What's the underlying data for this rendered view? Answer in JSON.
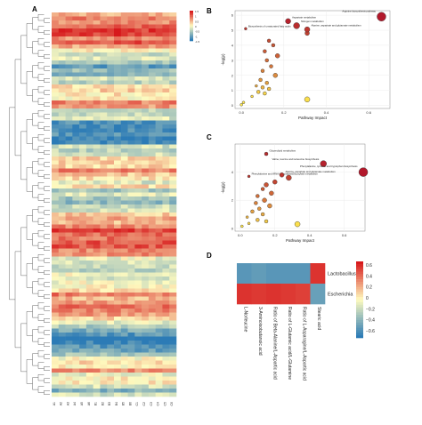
{
  "panels": {
    "a": "A",
    "b": "B",
    "c": "C",
    "d": "D"
  },
  "colors": {
    "high": "#d7191c",
    "mid": "#fffbbf",
    "low": "#2c7bb6",
    "point_high": "#b2182b",
    "point_low": "#ffe94d"
  },
  "heatmap_a": {
    "legend_ticks": [
      "1.5",
      "1",
      "0.5",
      "0",
      "-0.5",
      "-1",
      "-1.5"
    ],
    "column_labels": [
      "A1",
      "A2",
      "A3",
      "A4",
      "A5",
      "A6",
      "B1",
      "B2",
      "B3",
      "B4",
      "B5",
      "B6",
      "C1",
      "C2",
      "C3",
      "C4",
      "C5",
      "C6"
    ]
  },
  "chart_data": [
    {
      "type": "scatter",
      "panel": "B",
      "xlabel": "Pathway Impact",
      "ylabel": "-log(p)",
      "xlim": [
        -0.03,
        0.7
      ],
      "ylim": [
        -0.2,
        6.3
      ],
      "xticks": [
        0.0,
        0.2,
        0.4,
        0.6
      ],
      "yticks": [
        0,
        1,
        2,
        3,
        4,
        5,
        6
      ],
      "points": [
        {
          "x": 0.66,
          "y": 5.9,
          "size": 5,
          "v": 1.0,
          "label": "Arginine biosynthesis pathway"
        },
        {
          "x": 0.22,
          "y": 5.6,
          "size": 3,
          "v": 0.95,
          "label": "Aspartate metabolism"
        },
        {
          "x": 0.26,
          "y": 5.3,
          "size": 3.5,
          "v": 0.9,
          "label": "Nitrogen metabolism"
        },
        {
          "x": 0.31,
          "y": 5.05,
          "size": 3,
          "v": 0.85,
          "label": "Alanine, aspartate and glutamate metabolism"
        },
        {
          "x": 0.02,
          "y": 5.1,
          "size": 1.5,
          "v": 0.85,
          "label": "Biosynthesis of unsaturated fatty acids"
        },
        {
          "x": 0.31,
          "y": 4.8,
          "size": 2.5,
          "v": 0.8,
          "label": ""
        },
        {
          "x": 0.13,
          "y": 4.3,
          "size": 2,
          "v": 0.75,
          "label": ""
        },
        {
          "x": 0.15,
          "y": 4.0,
          "size": 2,
          "v": 0.7,
          "label": ""
        },
        {
          "x": 0.11,
          "y": 3.6,
          "size": 2,
          "v": 0.68,
          "label": ""
        },
        {
          "x": 0.17,
          "y": 3.3,
          "size": 2.5,
          "v": 0.65,
          "label": ""
        },
        {
          "x": 0.12,
          "y": 3.0,
          "size": 2,
          "v": 0.6,
          "label": ""
        },
        {
          "x": 0.14,
          "y": 2.6,
          "size": 2,
          "v": 0.55,
          "label": ""
        },
        {
          "x": 0.1,
          "y": 2.3,
          "size": 2,
          "v": 0.5,
          "label": ""
        },
        {
          "x": 0.16,
          "y": 2.0,
          "size": 2.5,
          "v": 0.45,
          "label": ""
        },
        {
          "x": 0.09,
          "y": 1.7,
          "size": 2,
          "v": 0.4,
          "label": ""
        },
        {
          "x": 0.12,
          "y": 1.5,
          "size": 2,
          "v": 0.35,
          "label": ""
        },
        {
          "x": 0.07,
          "y": 1.3,
          "size": 1.5,
          "v": 0.3,
          "label": ""
        },
        {
          "x": 0.1,
          "y": 1.2,
          "size": 2,
          "v": 0.25,
          "label": ""
        },
        {
          "x": 0.13,
          "y": 1.1,
          "size": 2,
          "v": 0.2,
          "label": ""
        },
        {
          "x": 0.08,
          "y": 0.9,
          "size": 2,
          "v": 0.15,
          "label": ""
        },
        {
          "x": 0.11,
          "y": 0.8,
          "size": 2,
          "v": 0.1,
          "label": ""
        },
        {
          "x": 0.05,
          "y": 0.6,
          "size": 1.5,
          "v": 0.08,
          "label": ""
        },
        {
          "x": 0.31,
          "y": 0.4,
          "size": 3,
          "v": 0.05,
          "label": ""
        },
        {
          "x": 0.01,
          "y": 0.2,
          "size": 1.5,
          "v": 0.03,
          "label": ""
        },
        {
          "x": 0.0,
          "y": 0.05,
          "size": 1.5,
          "v": 0.0,
          "label": ""
        }
      ]
    },
    {
      "type": "scatter",
      "panel": "C",
      "xlabel": "Pathway Impact",
      "ylabel": "-log(p)",
      "xlim": [
        -0.03,
        0.72
      ],
      "ylim": [
        -0.2,
        6.0
      ],
      "xticks": [
        0.0,
        0.2,
        0.4,
        0.6
      ],
      "yticks": [
        0,
        2,
        4
      ],
      "points": [
        {
          "x": 0.15,
          "y": 5.3,
          "size": 2,
          "v": 0.9,
          "label": "Glycerolipid metabolism"
        },
        {
          "x": 0.48,
          "y": 4.6,
          "size": 3.5,
          "v": 0.95,
          "label": "Valine, leucine and isoleucine biosynthesis"
        },
        {
          "x": 0.71,
          "y": 4.0,
          "size": 5,
          "v": 1.0,
          "label": "Phenylalanine, tyrosine and tryptophan biosynthesis"
        },
        {
          "x": 0.05,
          "y": 3.7,
          "size": 1.5,
          "v": 0.85,
          "label": "Phenylalanine and tRNA biosynthesis"
        },
        {
          "x": 0.24,
          "y": 3.8,
          "size": 2.5,
          "v": 0.85,
          "label": "Alanine, aspartate and glutamate metabolism"
        },
        {
          "x": 0.28,
          "y": 3.6,
          "size": 3,
          "v": 0.8,
          "label": "Glyoxylate metabolism"
        },
        {
          "x": 0.2,
          "y": 3.3,
          "size": 2.5,
          "v": 0.78,
          "label": ""
        },
        {
          "x": 0.15,
          "y": 3.1,
          "size": 2.5,
          "v": 0.72,
          "label": ""
        },
        {
          "x": 0.13,
          "y": 2.8,
          "size": 2,
          "v": 0.68,
          "label": ""
        },
        {
          "x": 0.18,
          "y": 2.5,
          "size": 2.5,
          "v": 0.62,
          "label": ""
        },
        {
          "x": 0.1,
          "y": 2.3,
          "size": 2,
          "v": 0.58,
          "label": ""
        },
        {
          "x": 0.14,
          "y": 2.0,
          "size": 2.5,
          "v": 0.55,
          "label": ""
        },
        {
          "x": 0.09,
          "y": 1.8,
          "size": 2,
          "v": 0.5,
          "label": ""
        },
        {
          "x": 0.17,
          "y": 1.6,
          "size": 2.5,
          "v": 0.45,
          "label": ""
        },
        {
          "x": 0.11,
          "y": 1.4,
          "size": 2,
          "v": 0.4,
          "label": ""
        },
        {
          "x": 0.07,
          "y": 1.2,
          "size": 2,
          "v": 0.35,
          "label": ""
        },
        {
          "x": 0.13,
          "y": 1.0,
          "size": 2,
          "v": 0.3,
          "label": ""
        },
        {
          "x": 0.04,
          "y": 0.8,
          "size": 1.5,
          "v": 0.25,
          "label": ""
        },
        {
          "x": 0.1,
          "y": 0.6,
          "size": 2,
          "v": 0.2,
          "label": ""
        },
        {
          "x": 0.15,
          "y": 0.5,
          "size": 2,
          "v": 0.15,
          "label": ""
        },
        {
          "x": 0.05,
          "y": 0.35,
          "size": 1.5,
          "v": 0.1,
          "label": ""
        },
        {
          "x": 0.33,
          "y": 0.3,
          "size": 3,
          "v": 0.05,
          "label": ""
        },
        {
          "x": 0.01,
          "y": 0.15,
          "size": 1.5,
          "v": 0.02,
          "label": ""
        }
      ]
    },
    {
      "type": "heatmap",
      "panel": "D",
      "rows": [
        "Lactobacillus",
        "Escherichia"
      ],
      "columns": [
        "L-Norleucine",
        "3-Aminoisobutanoic acid",
        "Ratio of Beta-Alanine/L-Aspartic acid",
        "Ratio of L-Glutamic acid/L-Glutamine",
        "Ratio of L-Asparagine/L-Aspartic acid",
        "Stearic acid"
      ],
      "values": [
        [
          -0.55,
          -0.52,
          -0.55,
          -0.55,
          -0.55,
          0.62
        ],
        [
          0.62,
          0.6,
          0.62,
          0.6,
          0.58,
          -0.5
        ]
      ],
      "zlim": [
        -0.7,
        0.7
      ],
      "legend_ticks": [
        "0.6",
        "0.4",
        "0.2",
        "0",
        "−0.2",
        "−0.4",
        "−0.6"
      ]
    }
  ]
}
